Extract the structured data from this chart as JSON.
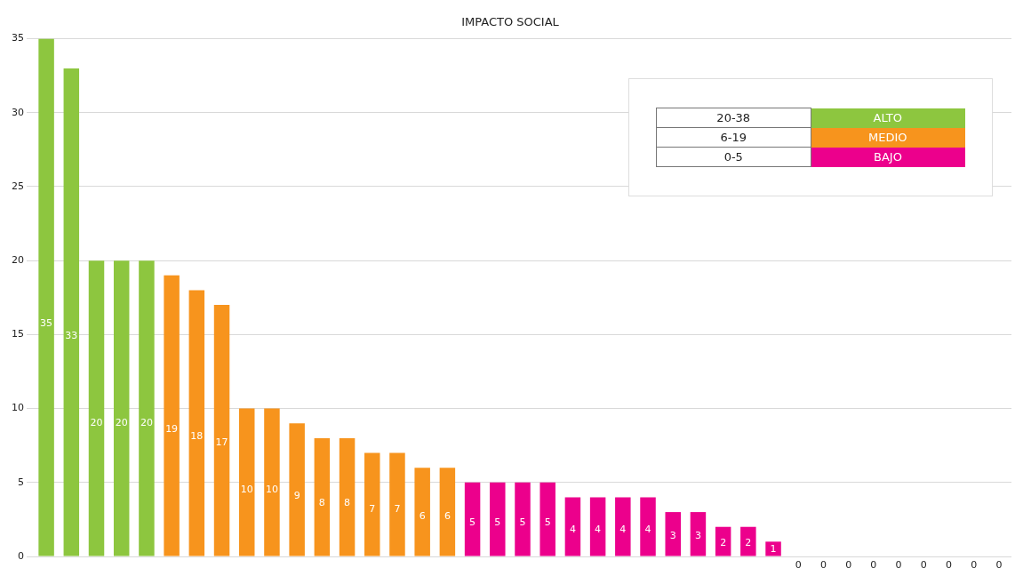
{
  "chart_data": {
    "type": "bar",
    "title": "IMPACTO SOCIAL",
    "categories": [
      null,
      null,
      null,
      null,
      null,
      null,
      null,
      null,
      null,
      null,
      null,
      null,
      null,
      null,
      null,
      null,
      null,
      null,
      null,
      null,
      null,
      null,
      null,
      null,
      null,
      null,
      null,
      null,
      null,
      null,
      null,
      null,
      null,
      null,
      null,
      null,
      null,
      null,
      null
    ],
    "series": [
      {
        "name": "ALTO",
        "color": "#8dc63f",
        "values": [
          35,
          33,
          20,
          20,
          20,
          null,
          null,
          null,
          null,
          null,
          null,
          null,
          null,
          null,
          null,
          null,
          null,
          null,
          null,
          null,
          null,
          null,
          null,
          null,
          null,
          null,
          null,
          null,
          null,
          null,
          null,
          null,
          null,
          null,
          null,
          null,
          null,
          null,
          null
        ]
      },
      {
        "name": "MEDIO",
        "color": "#f7941d",
        "values": [
          null,
          null,
          null,
          null,
          null,
          19,
          18,
          17,
          10,
          10,
          9,
          8,
          8,
          7,
          7,
          6,
          6,
          null,
          null,
          null,
          null,
          null,
          null,
          null,
          null,
          null,
          null,
          null,
          null,
          null,
          null,
          null,
          null,
          null,
          null,
          null,
          null,
          null,
          null
        ]
      },
      {
        "name": "BAJO",
        "color": "#ec008c",
        "values": [
          null,
          null,
          null,
          null,
          null,
          null,
          null,
          null,
          null,
          null,
          null,
          null,
          null,
          null,
          null,
          null,
          null,
          5,
          5,
          5,
          5,
          4,
          4,
          4,
          4,
          3,
          3,
          2,
          2,
          1,
          0,
          0,
          0,
          0,
          0,
          0,
          0,
          0,
          0
        ]
      }
    ],
    "annotations": [
      "20-38",
      "6-19",
      "0-5"
    ],
    "ylim": [
      0,
      35
    ],
    "yticks": [
      0,
      5,
      10,
      15,
      20,
      25,
      30,
      35
    ],
    "grid": "y",
    "legend": "top right",
    "data_labels": true,
    "tick_labels": "y"
  }
}
